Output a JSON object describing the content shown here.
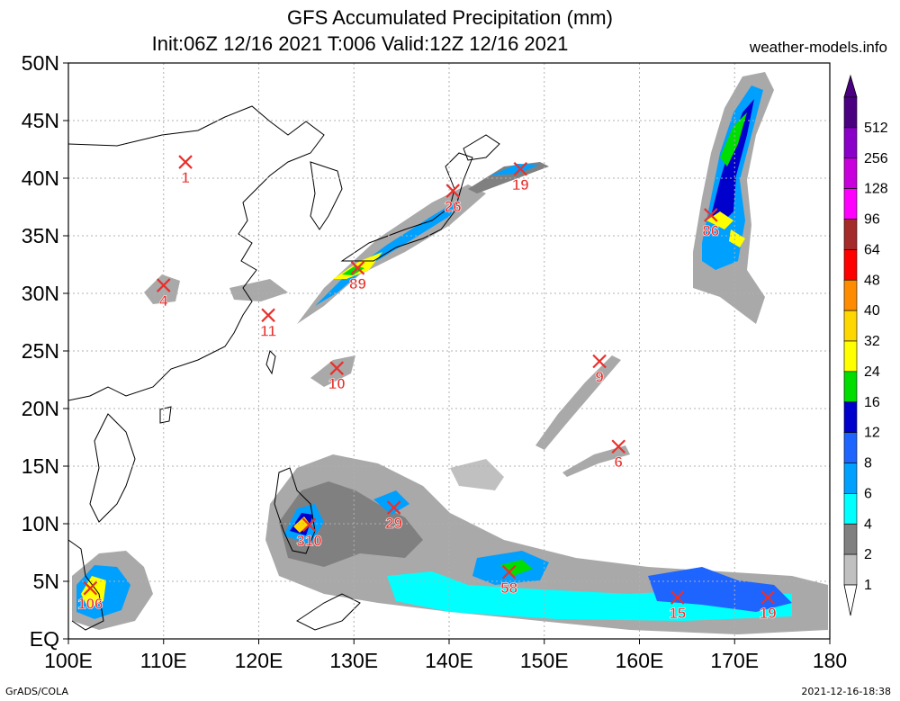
{
  "header": {
    "title": "GFS Accumulated Precipitation (mm)",
    "subtitle": "Init:06Z 12/16 2021 T:006 Valid:12Z 12/16 2021",
    "site": "weather-models.info"
  },
  "footer": {
    "left": "GrADS/COLA",
    "right": "2021-12-16-18:38"
  },
  "map": {
    "lon_range": [
      100,
      180
    ],
    "lat_range": [
      0,
      50
    ],
    "lon_ticks": [
      "100E",
      "110E",
      "120E",
      "130E",
      "140E",
      "150E",
      "160E",
      "170E",
      "180"
    ],
    "lat_ticks": [
      "EQ",
      "5N",
      "10N",
      "15N",
      "20N",
      "25N",
      "30N",
      "35N",
      "40N",
      "45N",
      "50N"
    ],
    "grid": true,
    "markers": [
      {
        "lon": 112.3,
        "lat": 41.4,
        "value": "1"
      },
      {
        "lon": 110.0,
        "lat": 30.7,
        "value": "4"
      },
      {
        "lon": 121.0,
        "lat": 28.1,
        "value": "11"
      },
      {
        "lon": 130.4,
        "lat": 32.2,
        "value": "89"
      },
      {
        "lon": 128.2,
        "lat": 23.5,
        "value": "10"
      },
      {
        "lon": 140.4,
        "lat": 38.9,
        "value": "26"
      },
      {
        "lon": 147.5,
        "lat": 40.8,
        "value": "19"
      },
      {
        "lon": 167.5,
        "lat": 36.8,
        "value": "86"
      },
      {
        "lon": 155.8,
        "lat": 24.1,
        "value": "9"
      },
      {
        "lon": 157.8,
        "lat": 16.7,
        "value": "6"
      },
      {
        "lon": 134.2,
        "lat": 11.4,
        "value": "29"
      },
      {
        "lon": 125.3,
        "lat": 9.9,
        "value": "310"
      },
      {
        "lon": 146.3,
        "lat": 5.8,
        "value": "58"
      },
      {
        "lon": 102.3,
        "lat": 4.4,
        "value": "106"
      },
      {
        "lon": 164.0,
        "lat": 3.6,
        "value": "15"
      },
      {
        "lon": 173.5,
        "lat": 3.6,
        "value": "19"
      }
    ]
  },
  "legend": {
    "levels": [
      {
        "label": "512",
        "color": "#4b0082"
      },
      {
        "label": "256",
        "color": "#8a00c8"
      },
      {
        "label": "128",
        "color": "#c800dc"
      },
      {
        "label": "96",
        "color": "#ff00ff"
      },
      {
        "label": "64",
        "color": "#a52a2a"
      },
      {
        "label": "48",
        "color": "#ff0000"
      },
      {
        "label": "40",
        "color": "#ff8c00"
      },
      {
        "label": "32",
        "color": "#ffd700"
      },
      {
        "label": "24",
        "color": "#ffff00"
      },
      {
        "label": "16",
        "color": "#00dd00"
      },
      {
        "label": "12",
        "color": "#0000cd"
      },
      {
        "label": "8",
        "color": "#1e64ff"
      },
      {
        "label": "6",
        "color": "#00a0ff"
      },
      {
        "label": "4",
        "color": "#00ffff"
      },
      {
        "label": "2",
        "color": "#808080"
      },
      {
        "label": "1",
        "color": "#c0c0c0"
      }
    ],
    "top_color": "#4b0082",
    "bottom_color": "#ffffff"
  },
  "colors": {
    "marker": "#e8302c",
    "grid": "#b0b0b0",
    "coast": "#000000"
  }
}
